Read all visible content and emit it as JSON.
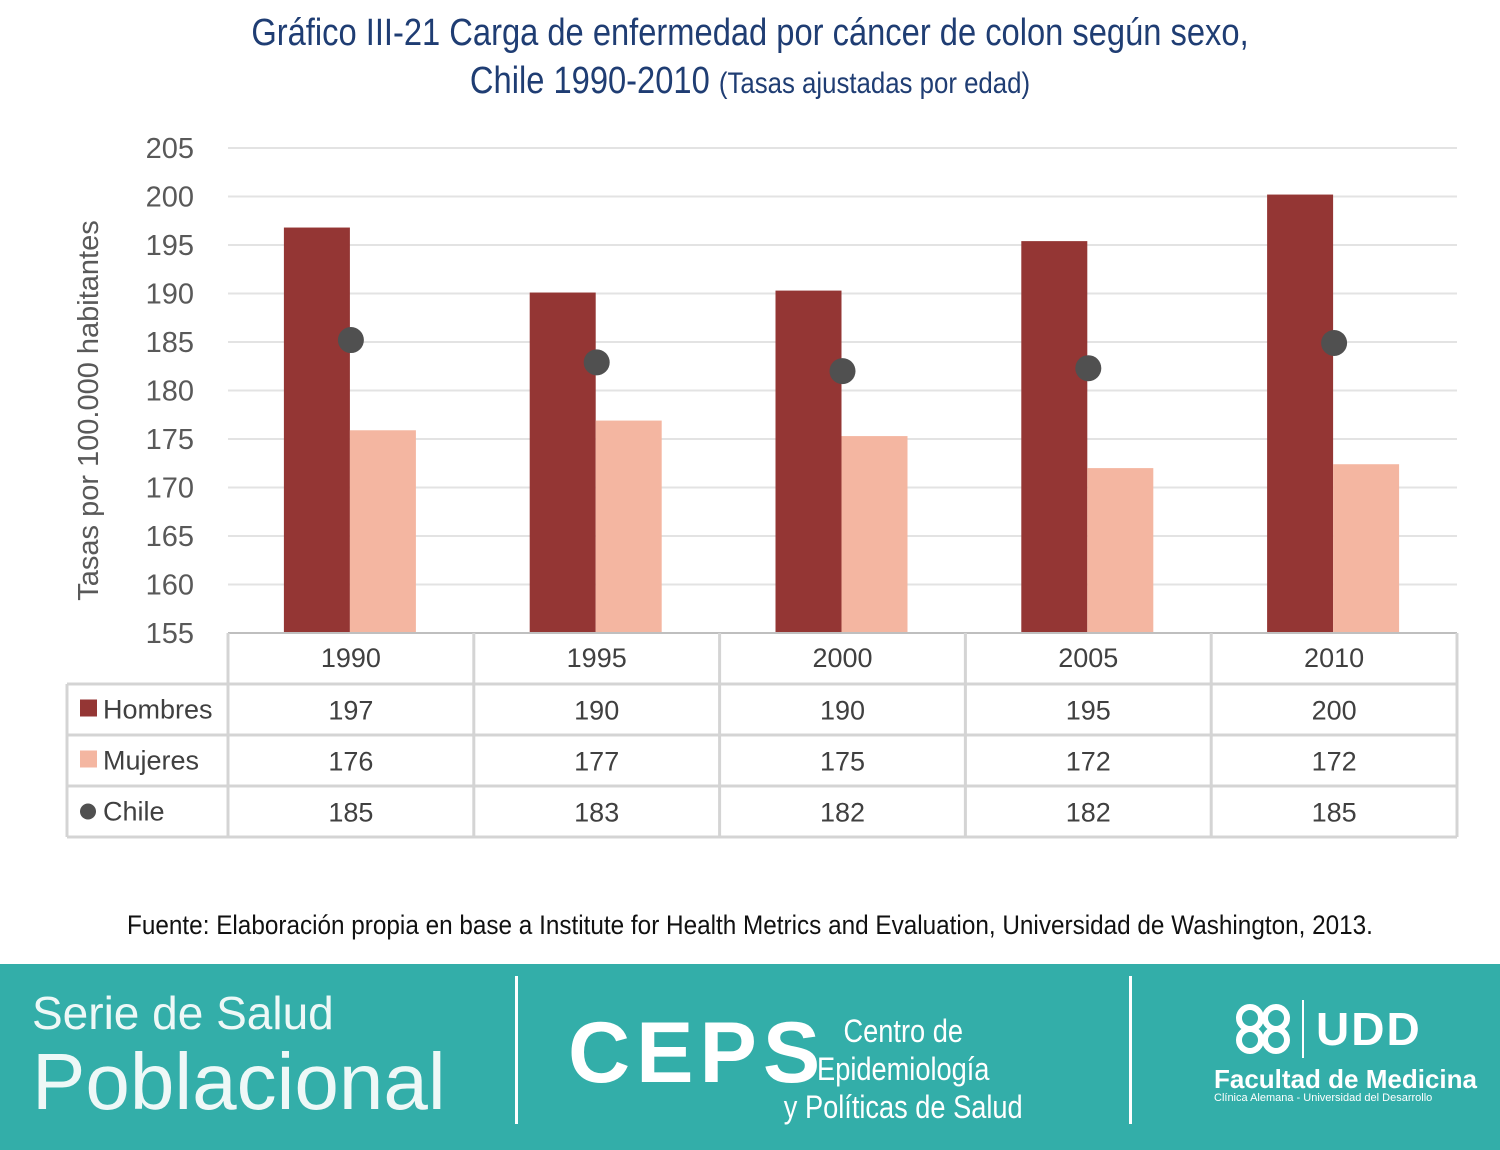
{
  "title": {
    "line1": "Gráfico III-21 Carga de enfermedad por cáncer de colon según sexo,",
    "line2": "Chile 1990-2010",
    "line2_sub": "(Tasas ajustadas por edad)"
  },
  "chart_data": {
    "type": "bar",
    "ylabel": "Tasas por 100.000 habitantes",
    "ylim": [
      155,
      205
    ],
    "yticks": [
      155,
      160,
      165,
      170,
      175,
      180,
      185,
      190,
      195,
      200,
      205
    ],
    "grid": true,
    "categories": [
      "1990",
      "1995",
      "2000",
      "2005",
      "2010"
    ],
    "series": [
      {
        "name": "Hombres",
        "kind": "bar",
        "color": "#943634",
        "values": [
          196.8,
          190.1,
          190.3,
          195.4,
          200.2
        ],
        "labels": [
          "197",
          "190",
          "190",
          "195",
          "200"
        ]
      },
      {
        "name": "Mujeres",
        "kind": "bar",
        "color": "#f4b6a1",
        "values": [
          175.9,
          176.9,
          175.3,
          172.0,
          172.4
        ],
        "labels": [
          "176",
          "177",
          "175",
          "172",
          "172"
        ]
      },
      {
        "name": "Chile",
        "kind": "marker",
        "color": "#505050",
        "values": [
          185.2,
          182.9,
          182.0,
          182.3,
          184.9
        ],
        "labels": [
          "185",
          "183",
          "182",
          "182",
          "185"
        ]
      }
    ]
  },
  "source": "Fuente: Elaboración propia en base a Institute for Health Metrics and Evaluation, Universidad de Washington, 2013.",
  "footer": {
    "serie_line1": "Serie de Salud",
    "serie_line2": "Poblacional",
    "ceps": "CEPS",
    "ceps_sub1": "Centro de Epidemiología",
    "ceps_sub2": "y Políticas de Salud",
    "udd": "UDD",
    "faculty": "Facultad de Medicina",
    "faculty_sub": "Clínica Alemana - Universidad del Desarrollo"
  }
}
